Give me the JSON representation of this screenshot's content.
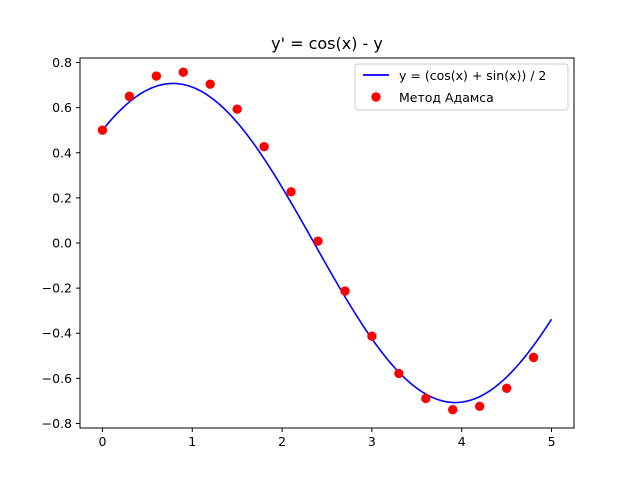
{
  "chart_data": {
    "type": "line",
    "title": "y' = cos(x) - y",
    "xlabel": "",
    "ylabel": "",
    "xlim": [
      -0.25,
      5.25
    ],
    "ylim": [
      -0.82,
      0.82
    ],
    "x_ticks": [
      0,
      1,
      2,
      3,
      4,
      5
    ],
    "x_tick_labels": [
      "0",
      "1",
      "2",
      "3",
      "4",
      "5"
    ],
    "y_ticks": [
      -0.8,
      -0.6,
      -0.4,
      -0.2,
      0.0,
      0.2,
      0.4,
      0.6,
      0.8
    ],
    "y_tick_labels": [
      "−0.8",
      "−0.6",
      "−0.4",
      "−0.2",
      "0.0",
      "0.2",
      "0.4",
      "0.6",
      "0.8"
    ],
    "grid": false,
    "legend_position": "top-right",
    "series": [
      {
        "name": "y = (cos(x) + sin(x)) / 2",
        "style": "line",
        "color": "#0000ff",
        "formula": "(cos(x)+sin(x))/2",
        "x_range": [
          0,
          5
        ]
      },
      {
        "name": "Метод Адамса",
        "style": "markers",
        "color": "#ff0000",
        "x": [
          0.0,
          0.3,
          0.6,
          0.9,
          1.2,
          1.5,
          1.8,
          2.1,
          2.4,
          2.7,
          3.0,
          3.3,
          3.6,
          3.9,
          4.2,
          4.5,
          4.8
        ],
        "y": [
          0.5,
          0.65,
          0.74,
          0.757,
          0.704,
          0.593,
          0.427,
          0.227,
          0.008,
          -0.213,
          -0.413,
          -0.578,
          -0.689,
          -0.739,
          -0.724,
          -0.644,
          -0.507
        ]
      }
    ]
  }
}
